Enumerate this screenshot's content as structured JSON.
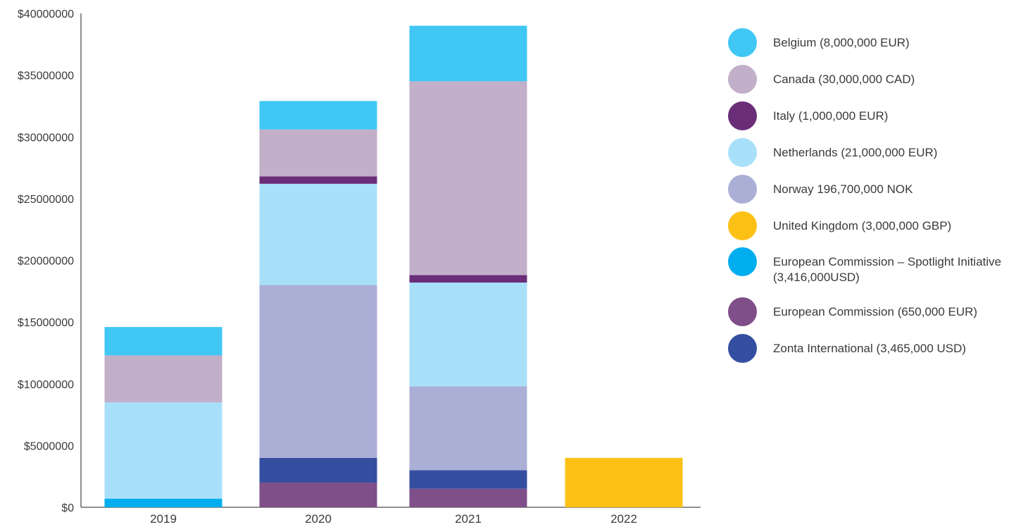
{
  "chart_data": {
    "type": "bar",
    "stacked": true,
    "categories": [
      "2019",
      "2020",
      "2021",
      "2022"
    ],
    "ylim": [
      0,
      40000000
    ],
    "yticks": [
      0,
      5000000,
      10000000,
      15000000,
      20000000,
      25000000,
      30000000,
      35000000,
      40000000
    ],
    "ytick_labels": [
      "$0",
      "$5000000",
      "$10000000",
      "$15000000",
      "$20000000",
      "$25000000",
      "$30000000",
      "$35000000",
      "$40000000"
    ],
    "grid": false,
    "legend_position": "right",
    "series": [
      {
        "name": "European Commission (650,000 EUR)",
        "color": "#7f4f89",
        "values": [
          0,
          2000000,
          1500000,
          0
        ]
      },
      {
        "name": "Zonta International (3,465,000 USD)",
        "color": "#344ea0",
        "values": [
          0,
          2000000,
          1500000,
          0
        ]
      },
      {
        "name": "European Commission – Spotlight Initiative (3,416,000USD)",
        "color": "#00aeef",
        "values": [
          700000,
          0,
          0,
          0
        ]
      },
      {
        "name": "Norway 196,700,000 NOK",
        "color": "#abafd6",
        "values": [
          0,
          14000000,
          6800000,
          0
        ]
      },
      {
        "name": "Netherlands (21,000,000 EUR)",
        "color": "#a8e0fa",
        "values": [
          7800000,
          8200000,
          8400000,
          0
        ]
      },
      {
        "name": "Italy (1,000,000 EUR)",
        "color": "#6a2d78",
        "values": [
          0,
          600000,
          600000,
          0
        ]
      },
      {
        "name": "Canada (30,000,000 CAD)",
        "color": "#c2afc9",
        "values": [
          3800000,
          3800000,
          15700000,
          0
        ]
      },
      {
        "name": "Belgium (8,000,000 EUR)",
        "color": "#40c7f4",
        "values": [
          2300000,
          2300000,
          4500000,
          0
        ]
      },
      {
        "name": "United Kingdom (3,000,000 GBP)",
        "color": "#fdc116",
        "values": [
          0,
          0,
          0,
          4000000
        ]
      }
    ]
  },
  "legend": [
    {
      "label": "Belgium (8,000,000 EUR)",
      "color": "#40c7f4"
    },
    {
      "label": "Canada (30,000,000 CAD)",
      "color": "#c2afc9"
    },
    {
      "label": "Italy (1,000,000 EUR)",
      "color": "#6a2d78"
    },
    {
      "label": "Netherlands (21,000,000 EUR)",
      "color": "#a8e0fa"
    },
    {
      "label": "Norway 196,700,000 NOK",
      "color": "#abafd6"
    },
    {
      "label": "United Kingdom (3,000,000 GBP)",
      "color": "#fdc116"
    },
    {
      "label": "European Commission – Spotlight Initiative (3,416,000USD)",
      "color": "#00aeef"
    },
    {
      "label": "European Commission (650,000 EUR)",
      "color": "#7f4f89"
    },
    {
      "label": "Zonta International (3,465,000 USD)",
      "color": "#344ea0"
    }
  ]
}
